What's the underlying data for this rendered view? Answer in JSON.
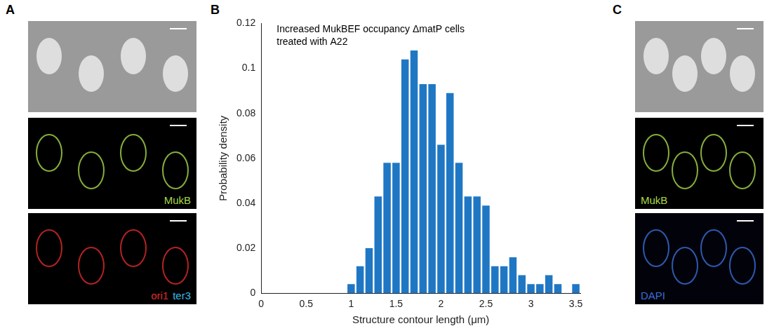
{
  "panel_a": {
    "letter": "A",
    "image_labels": [
      [],
      [
        {
          "text": "MukB",
          "color": "#a8d84a"
        }
      ],
      [
        {
          "text": "ori1",
          "color": "#e02a2a"
        },
        {
          "text": "ter3",
          "color": "#38b8e8"
        }
      ]
    ]
  },
  "panel_b": {
    "letter": "B"
  },
  "panel_c": {
    "letter": "C",
    "image_labels": [
      [],
      [
        {
          "text": "MukB",
          "color": "#a8d84a"
        }
      ],
      [
        {
          "text": "DAPI",
          "color": "#3a6ed8"
        }
      ]
    ]
  },
  "chart_data": {
    "type": "histogram",
    "annotation": [
      "Increased MukBEF occupancy ΔmatP cells",
      "treated with A22"
    ],
    "x_label": "Structure contour length (μm)",
    "y_label": "Probability density",
    "bins": [
      0.95,
      1.05,
      1.15,
      1.25,
      1.35,
      1.45,
      1.55,
      1.65,
      1.75,
      1.85,
      1.95,
      2.05,
      2.15,
      2.25,
      2.35,
      2.45,
      2.55,
      2.65,
      2.75,
      2.85,
      2.95,
      3.05,
      3.15,
      3.25,
      3.35,
      3.45,
      3.55
    ],
    "values": [
      0.004,
      0.012,
      0.02,
      0.043,
      0.058,
      0.058,
      0.104,
      0.108,
      0.093,
      0.093,
      0.066,
      0.089,
      0.058,
      0.043,
      0.043,
      0.039,
      0.012,
      0.012,
      0.016,
      0.008,
      0.004,
      0.004,
      0.008,
      0.004,
      0,
      0.004
    ],
    "color": "#1f77c4",
    "xlim": [
      0,
      3.55
    ],
    "xticks": [
      0,
      0.5,
      1,
      1.5,
      2,
      2.5,
      3,
      3.5
    ],
    "ylim": [
      0,
      0.12
    ],
    "yticks": [
      0,
      0.02,
      0.04,
      0.06,
      0.08,
      0.1,
      0.12
    ],
    "grid": false
  }
}
